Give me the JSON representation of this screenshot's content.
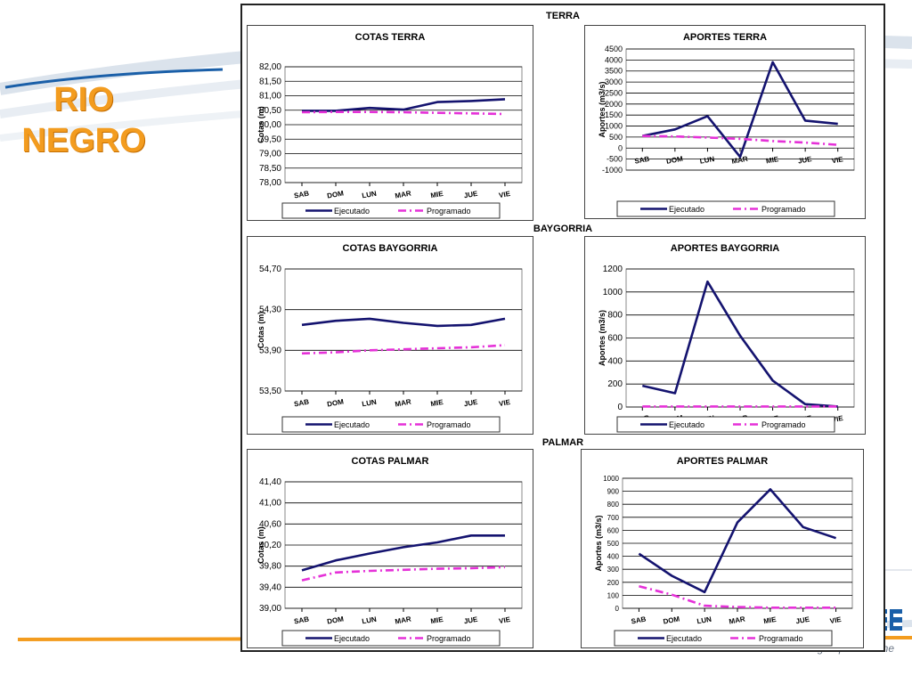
{
  "slide": {
    "title_lines": [
      "RIO",
      "NEGRO"
    ],
    "footer_text": "La energía que nos une",
    "colors": {
      "title": "#f39c1f",
      "ejecutado": "#14136f",
      "programado": "#e531d8",
      "logo": "#1a5fa8"
    },
    "sections": [
      "TERRA",
      "BAYGORRIA",
      "PALMAR"
    ]
  },
  "legend": {
    "ejecutado": "Ejecutado",
    "programado": "Programado"
  },
  "chart_data": [
    {
      "id": "cotas_terra",
      "type": "line",
      "title": "COTAS TERRA",
      "ylabel": "Cotas (m)",
      "categories": [
        "SAB",
        "DOM",
        "LUN",
        "MAR",
        "MIE",
        "JUE",
        "VIE"
      ],
      "yticks": [
        "78,00",
        "78,50",
        "79,00",
        "79,50",
        "80,00",
        "80,50",
        "81,00",
        "81,50",
        "82,00"
      ],
      "ylim": [
        78,
        82
      ],
      "grid": true,
      "legend_position": "bottom",
      "series": [
        {
          "name": "Ejecutado",
          "values": [
            80.48,
            80.48,
            80.58,
            80.52,
            80.78,
            80.82,
            80.88
          ]
        },
        {
          "name": "Programado",
          "values": [
            80.43,
            80.44,
            80.44,
            80.43,
            80.41,
            80.39,
            80.37
          ]
        }
      ]
    },
    {
      "id": "aportes_terra",
      "type": "line",
      "title": "APORTES TERRA",
      "ylabel": "Aportes (m3/s)",
      "categories": [
        "SAB",
        "DOM",
        "LUN",
        "MAR",
        "MIE",
        "JUE",
        "VIE"
      ],
      "yticks": [
        "-1000",
        "-500",
        "0",
        "500",
        "1000",
        "1500",
        "2000",
        "2500",
        "3000",
        "3500",
        "4000",
        "4500"
      ],
      "ylim": [
        -1000,
        4500
      ],
      "grid": true,
      "legend_position": "bottom",
      "series": [
        {
          "name": "Ejecutado",
          "values": [
            550,
            850,
            1450,
            -400,
            3900,
            1250,
            1100
          ]
        },
        {
          "name": "Programado",
          "values": [
            550,
            530,
            480,
            420,
            320,
            250,
            150
          ]
        }
      ]
    },
    {
      "id": "cotas_baygorria",
      "type": "line",
      "title": "COTAS BAYGORRIA",
      "ylabel": "Cotas (m)",
      "categories": [
        "SAB",
        "DOM",
        "LUN",
        "MAR",
        "MIE",
        "JUE",
        "VIE"
      ],
      "yticks": [
        "53,50",
        "53,90",
        "54,30",
        "54,70"
      ],
      "ylim": [
        53.5,
        54.7
      ],
      "grid": true,
      "legend_position": "bottom",
      "series": [
        {
          "name": "Ejecutado",
          "values": [
            54.15,
            54.19,
            54.21,
            54.17,
            54.14,
            54.15,
            54.21
          ]
        },
        {
          "name": "Programado",
          "values": [
            53.87,
            53.88,
            53.9,
            53.91,
            53.92,
            53.93,
            53.95
          ]
        }
      ]
    },
    {
      "id": "aportes_baygorria",
      "type": "line",
      "title": "APORTES BAYGORRIA",
      "ylabel": "Aportes (m3/s)",
      "categories": [
        "SAB",
        "DOM",
        "LUN",
        "MAR",
        "MIE",
        "JUE",
        "VIE"
      ],
      "yticks": [
        "0",
        "200",
        "400",
        "600",
        "800",
        "1000",
        "1200"
      ],
      "ylim": [
        0,
        1200
      ],
      "grid": true,
      "legend_position": "bottom",
      "series": [
        {
          "name": "Ejecutado",
          "values": [
            185,
            120,
            1090,
            620,
            230,
            25,
            5
          ]
        },
        {
          "name": "Programado",
          "values": [
            5,
            5,
            5,
            5,
            5,
            5,
            5
          ]
        }
      ]
    },
    {
      "id": "cotas_palmar",
      "type": "line",
      "title": "COTAS PALMAR",
      "ylabel": "Cotas (m)",
      "categories": [
        "SAB",
        "DOM",
        "LUN",
        "MAR",
        "MIE",
        "JUE",
        "VIE"
      ],
      "yticks": [
        "39,00",
        "39,40",
        "39,80",
        "40,20",
        "40,60",
        "41,00",
        "41,40"
      ],
      "ylim": [
        39.0,
        41.4
      ],
      "grid": true,
      "legend_position": "bottom",
      "series": [
        {
          "name": "Ejecutado",
          "values": [
            39.72,
            39.91,
            40.04,
            40.16,
            40.25,
            40.38,
            40.38
          ]
        },
        {
          "name": "Programado",
          "values": [
            39.53,
            39.68,
            39.71,
            39.73,
            39.75,
            39.76,
            39.78
          ]
        }
      ]
    },
    {
      "id": "aportes_palmar",
      "type": "line",
      "title": "APORTES PALMAR",
      "ylabel": "Aportes (m3/s)",
      "categories": [
        "SAB",
        "DOM",
        "LUN",
        "MAR",
        "MIE",
        "JUE",
        "VIE"
      ],
      "yticks": [
        "0",
        "100",
        "200",
        "300",
        "400",
        "500",
        "600",
        "700",
        "800",
        "900",
        "1000"
      ],
      "ylim": [
        0,
        1000
      ],
      "grid": true,
      "legend_position": "bottom",
      "series": [
        {
          "name": "Ejecutado",
          "values": [
            420,
            250,
            125,
            660,
            915,
            625,
            540
          ]
        },
        {
          "name": "Programado",
          "values": [
            170,
            105,
            20,
            10,
            5,
            5,
            5
          ]
        }
      ]
    }
  ]
}
